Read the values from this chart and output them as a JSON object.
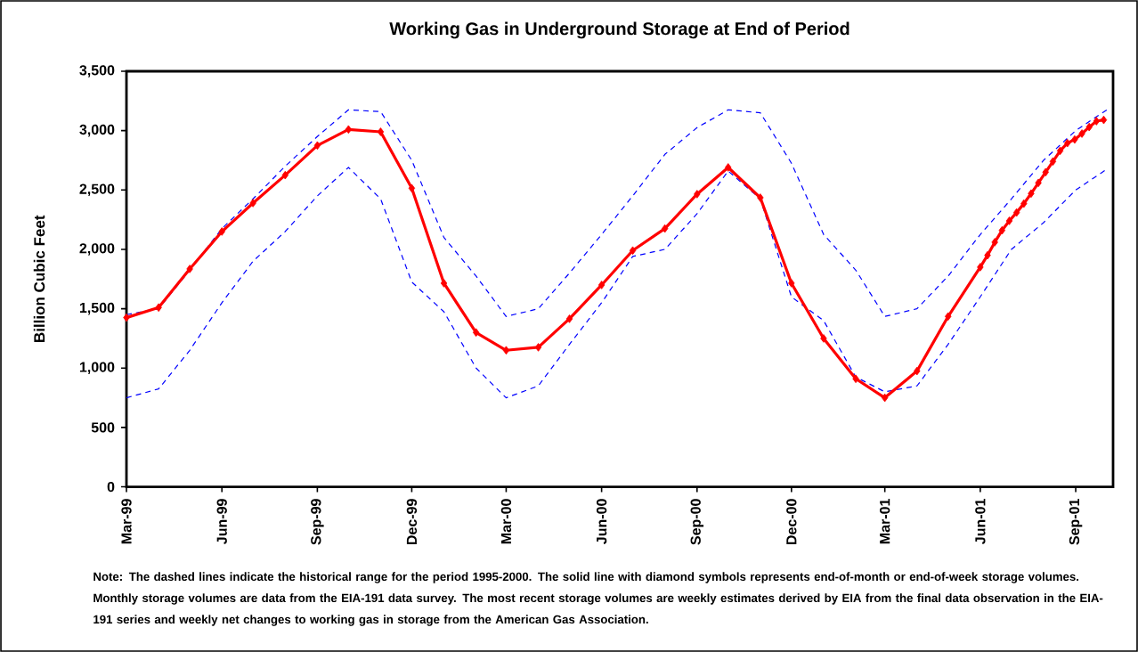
{
  "chart_data": {
    "type": "line",
    "title": "Working Gas in Underground Storage at End of Period",
    "ylabel": "Billion Cubic Feet",
    "annotations": [
      "Note: The dashed lines indicate the historical range for the period 1995-2000.  The solid line with diamond symbols represents end-of-month or end-of-week storage volumes.  Monthly storage volumes are data from the EIA-191 data survey.  The most recent storage volumes are weekly estimates derived by EIA from the final data observation in the EIA-191 series and weekly net changes to working gas in storage from the American Gas Association."
    ],
    "xlim": [
      "1999-03-01",
      "2001-10-07"
    ],
    "xticks": [
      {
        "value": "1999-03-01",
        "label": "Mar-99"
      },
      {
        "value": "1999-06-01",
        "label": "Jun-99"
      },
      {
        "value": "1999-09-01",
        "label": "Sep-99"
      },
      {
        "value": "1999-12-01",
        "label": "Dec-99"
      },
      {
        "value": "2000-03-01",
        "label": "Mar-00"
      },
      {
        "value": "2000-06-01",
        "label": "Jun-00"
      },
      {
        "value": "2000-09-01",
        "label": "Sep-00"
      },
      {
        "value": "2000-12-01",
        "label": "Dec-00"
      },
      {
        "value": "2001-03-01",
        "label": "Mar-01"
      },
      {
        "value": "2001-06-01",
        "label": "Jun-01"
      },
      {
        "value": "2001-09-01",
        "label": "Sep-01"
      }
    ],
    "ylim": [
      0,
      3500
    ],
    "yticks": [
      0,
      {
        "value": 500,
        "label": "500"
      },
      {
        "value": 1000,
        "label": "1,000"
      },
      {
        "value": 1500,
        "label": "1,500"
      },
      {
        "value": 2000,
        "label": "2,000"
      },
      {
        "value": 2500,
        "label": "2,500"
      },
      {
        "value": 3000,
        "label": "3,000"
      },
      {
        "value": 3500,
        "label": "3,500"
      }
    ],
    "series": [
      {
        "color": "#0000ff",
        "line_style": "dashed",
        "marker": "none",
        "x": [
          "1999-03-01",
          "1999-04-01",
          "1999-05-01",
          "1999-06-01",
          "1999-07-01",
          "1999-08-01",
          "1999-09-01",
          "1999-10-01",
          "1999-11-01",
          "1999-12-01",
          "2000-01-01",
          "2000-02-01",
          "2000-03-01",
          "2000-04-01",
          "2000-05-01",
          "2000-06-01",
          "2000-07-01",
          "2000-08-01",
          "2000-09-01",
          "2000-10-01",
          "2000-11-01",
          "2000-12-01",
          "2001-01-01",
          "2001-02-01",
          "2001-03-01",
          "2001-04-01",
          "2001-05-01",
          "2001-06-01",
          "2001-07-01",
          "2001-08-01",
          "2001-09-01",
          "2001-10-01"
        ],
        "values": [
          1450,
          1500,
          1825,
          2175,
          2425,
          2700,
          2950,
          3175,
          3160,
          2750,
          2100,
          1775,
          1435,
          1500,
          1800,
          2125,
          2450,
          2800,
          3025,
          3175,
          3150,
          2725,
          2125,
          1825,
          1435,
          1500,
          1775,
          2125,
          2425,
          2750,
          3000,
          3175
        ]
      },
      {
        "color": "#0000ff",
        "line_style": "dashed",
        "marker": "none",
        "x": [
          "1999-03-01",
          "1999-04-01",
          "1999-05-01",
          "1999-06-01",
          "1999-07-01",
          "1999-08-01",
          "1999-09-01",
          "1999-10-01",
          "1999-11-01",
          "1999-12-01",
          "2000-01-01",
          "2000-02-01",
          "2000-03-01",
          "2000-04-01",
          "2000-05-01",
          "2000-06-01",
          "2000-07-01",
          "2000-08-01",
          "2000-09-01",
          "2000-10-01",
          "2000-11-01",
          "2000-12-01",
          "2001-01-01",
          "2001-02-01",
          "2001-03-01",
          "2001-04-01",
          "2001-05-01",
          "2001-06-01",
          "2001-07-01",
          "2001-08-01",
          "2001-09-01",
          "2001-10-01"
        ],
        "values": [
          750,
          825,
          1150,
          1550,
          1900,
          2150,
          2450,
          2690,
          2425,
          1725,
          1475,
          1000,
          750,
          850,
          1200,
          1550,
          1940,
          2000,
          2300,
          2660,
          2425,
          1600,
          1400,
          925,
          800,
          850,
          1200,
          1600,
          2000,
          2225,
          2500,
          2675
        ]
      },
      {
        "color": "#ff0000",
        "line_style": "solid",
        "marker": "diamond",
        "x": [
          "1999-03-01",
          "1999-04-01",
          "1999-05-01",
          "1999-06-01",
          "1999-07-01",
          "1999-08-01",
          "1999-09-01",
          "1999-10-01",
          "1999-11-01",
          "1999-12-01",
          "2000-01-01",
          "2000-02-01",
          "2000-03-01",
          "2000-04-01",
          "2000-05-01",
          "2000-06-01",
          "2000-07-01",
          "2000-08-01",
          "2000-09-01",
          "2000-10-01",
          "2000-11-01",
          "2000-12-01",
          "2001-01-01",
          "2001-02-01",
          "2001-03-01",
          "2001-04-01",
          "2001-05-01",
          "2001-06-01",
          "2001-06-08",
          "2001-06-15",
          "2001-06-22",
          "2001-06-29",
          "2001-07-06",
          "2001-07-13",
          "2001-07-20",
          "2001-07-27",
          "2001-08-03",
          "2001-08-10",
          "2001-08-17",
          "2001-08-24",
          "2001-08-31",
          "2001-09-07",
          "2001-09-14",
          "2001-09-21",
          "2001-09-28"
        ],
        "values": [
          1425,
          1510,
          1835,
          2150,
          2390,
          2625,
          2875,
          3010,
          2990,
          2515,
          1715,
          1300,
          1150,
          1175,
          1415,
          1700,
          1990,
          2175,
          2465,
          2690,
          2435,
          1715,
          1250,
          910,
          750,
          975,
          1435,
          1850,
          1950,
          2060,
          2160,
          2240,
          2310,
          2385,
          2470,
          2560,
          2650,
          2740,
          2830,
          2895,
          2925,
          2975,
          3030,
          3080,
          3090
        ]
      }
    ]
  }
}
